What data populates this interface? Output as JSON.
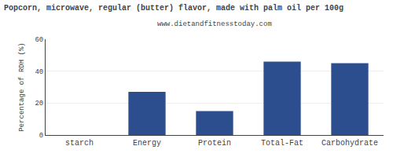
{
  "chart_data": {
    "type": "bar",
    "title": "Popcorn, microwave, regular (butter) flavor, made with palm oil per 100g",
    "subtitle": "www.dietandfitnesstoday.com",
    "categories": [
      "starch",
      "Energy",
      "Protein",
      "Total-Fat",
      "Carbohydrate"
    ],
    "values": [
      0,
      27,
      15,
      46,
      45
    ],
    "color": "#2d4e8e",
    "ylabel": "Percentage of RDH (%)",
    "ylim": [
      0,
      60
    ],
    "yticks": [
      0,
      20,
      40,
      60
    ],
    "grid": true
  }
}
